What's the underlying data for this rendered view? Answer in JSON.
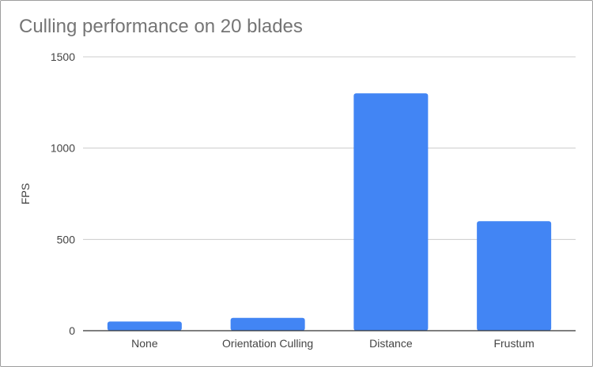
{
  "chart_data": {
    "type": "bar",
    "title": "Culling performance on 20 blades",
    "xlabel": "",
    "ylabel": "FPS",
    "categories": [
      "None",
      "Orientation Culling",
      "Distance",
      "Frustum"
    ],
    "values": [
      50,
      70,
      1300,
      600
    ],
    "ylim": [
      0,
      1500
    ],
    "yticks": [
      0,
      500,
      1000,
      1500
    ],
    "grid": true,
    "legend": "none",
    "bar_color": "#4285f4",
    "grid_color": "#cccccc",
    "axis_color": "#333333",
    "title_color": "#757575",
    "text_color": "#444444"
  }
}
